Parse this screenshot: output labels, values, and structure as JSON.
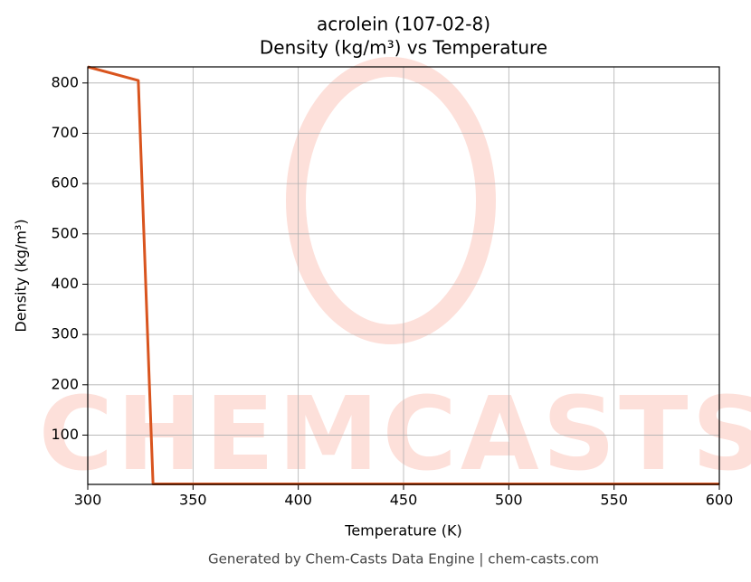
{
  "chart_data": {
    "type": "line",
    "title": "acrolein (107-02-8)",
    "subtitle": "Density (kg/m³) vs Temperature",
    "x_label": "Temperature (K)",
    "y_label": "Density (kg/m³)",
    "footer": "Generated by Chem-Casts Data Engine | chem-casts.com",
    "watermark": "CHEMCASTS",
    "x": [
      300,
      324,
      331,
      400,
      500,
      600
    ],
    "series": [
      {
        "name": "Density",
        "color": "#d9541e",
        "values": [
          832,
          805,
          3,
          3,
          3,
          3
        ]
      }
    ],
    "xlim": [
      300,
      600
    ],
    "xticks": [
      300,
      350,
      400,
      450,
      500,
      550,
      600
    ],
    "ylim": [
      2,
      832
    ],
    "yticks": [
      100,
      200,
      300,
      400,
      500,
      600,
      700,
      800
    ],
    "grid": true
  }
}
